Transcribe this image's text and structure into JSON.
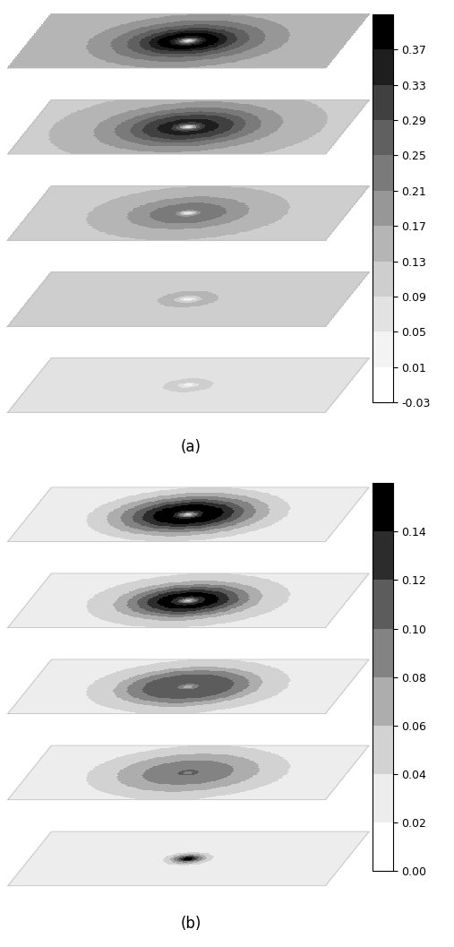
{
  "chart_data": [
    {
      "type": "contour_slices",
      "title": "(a)",
      "radii": [
        0,
        0.05,
        0.1,
        0.2,
        0.3,
        0.45,
        0.6,
        0.8,
        1.0,
        1.5
      ],
      "slices": [
        [
          0.05,
          0.15,
          0.3,
          0.39,
          0.37,
          0.3,
          0.25,
          0.2,
          0.17,
          0.13
        ],
        [
          0.05,
          0.15,
          0.28,
          0.35,
          0.33,
          0.29,
          0.24,
          0.19,
          0.16,
          0.12
        ],
        [
          0.03,
          0.1,
          0.2,
          0.25,
          0.22,
          0.2,
          0.17,
          0.15,
          0.13,
          0.11
        ],
        [
          0.03,
          0.06,
          0.12,
          0.15,
          0.13,
          0.11,
          0.1,
          0.09,
          0.09,
          0.09
        ],
        [
          0.02,
          0.05,
          0.09,
          0.1,
          0.08,
          0.07,
          0.06,
          0.06,
          0.06,
          0.06
        ]
      ],
      "colorbar_range": [
        -0.03,
        0.41
      ],
      "colorbar_ticks": [
        -0.03,
        0.01,
        0.05,
        0.09,
        0.13,
        0.17,
        0.21,
        0.25,
        0.29,
        0.33,
        0.37
      ]
    },
    {
      "type": "contour_slices",
      "title": "(b)",
      "radii": [
        0,
        0.05,
        0.1,
        0.2,
        0.3,
        0.45,
        0.6,
        0.8,
        1.0,
        1.5
      ],
      "slices": [
        [
          0.05,
          0.08,
          0.12,
          0.16,
          0.15,
          0.12,
          0.09,
          0.06,
          0.04,
          0.03
        ],
        [
          0.05,
          0.08,
          0.12,
          0.15,
          0.14,
          0.11,
          0.08,
          0.05,
          0.04,
          0.03
        ],
        [
          0.06,
          0.08,
          0.1,
          0.12,
          0.11,
          0.1,
          0.08,
          0.05,
          0.04,
          0.03
        ],
        [
          0.08,
          0.1,
          0.1,
          0.09,
          0.08,
          0.08,
          0.07,
          0.05,
          0.04,
          0.03
        ],
        [
          0.14,
          0.14,
          0.1,
          0.05,
          0.03,
          0.03,
          0.03,
          0.03,
          0.03,
          0.03
        ]
      ],
      "colorbar_range": [
        0.0,
        0.16
      ],
      "colorbar_ticks": [
        {
          "value": 0.0,
          "label": "0.00"
        },
        0.02,
        0.04,
        0.06,
        0.08,
        {
          "value": 0.1,
          "label": "0.10"
        },
        0.12,
        0.14
      ]
    }
  ]
}
